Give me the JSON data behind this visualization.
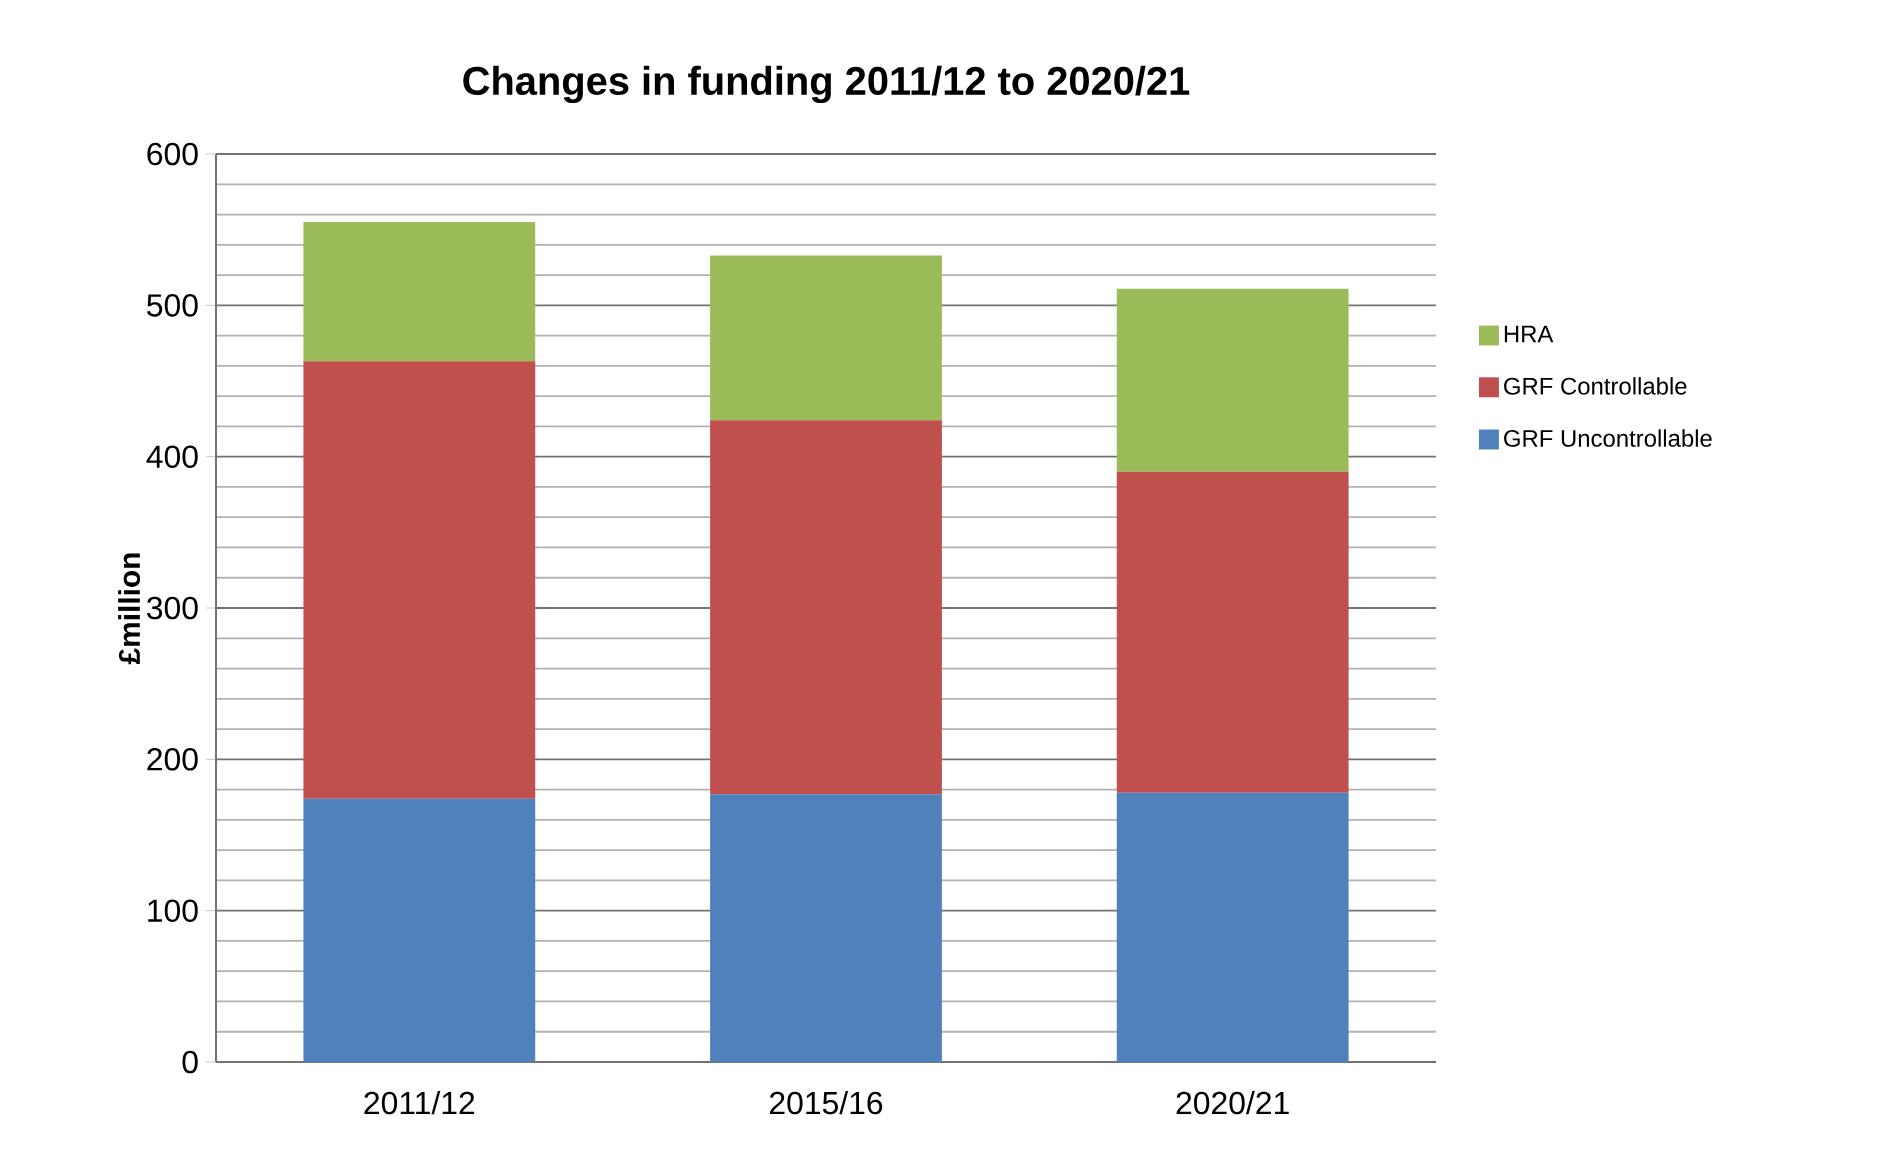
{
  "chart_data": {
    "type": "bar",
    "stacked": true,
    "title": "Changes in funding 2011/12 to 2020/21",
    "ylabel": "£million",
    "categories": [
      "2011/12",
      "2015/16",
      "2020/21"
    ],
    "series": [
      {
        "name": "GRF Uncontrollable",
        "color": "#4f81bd",
        "values": [
          174,
          177,
          178
        ]
      },
      {
        "name": "GRF Controllable",
        "color": "#c0504d",
        "values": [
          289,
          247,
          212
        ]
      },
      {
        "name": "HRA",
        "color": "#9bbb59",
        "values": [
          92,
          109,
          121
        ]
      }
    ],
    "ylim": [
      0,
      600
    ],
    "yticks": [
      0,
      100,
      200,
      300,
      400,
      500,
      600
    ],
    "grid": "y",
    "legend": "right"
  }
}
